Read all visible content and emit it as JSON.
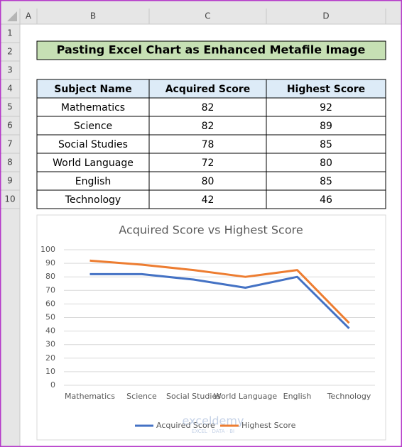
{
  "columns": [
    "A",
    "B",
    "C",
    "D"
  ],
  "rows": [
    1,
    2,
    3,
    4,
    5,
    6,
    7,
    8,
    9,
    10
  ],
  "title": "Pasting Excel Chart as Enhanced Metafile Image",
  "table": {
    "header": [
      "Subject Name",
      "Acquired Score",
      "Highest Score"
    ],
    "rows": [
      [
        "Mathematics",
        82,
        92
      ],
      [
        "Science",
        82,
        89
      ],
      [
        "Social Studies",
        78,
        85
      ],
      [
        "World Language",
        72,
        80
      ],
      [
        "English",
        80,
        85
      ],
      [
        "Technology",
        42,
        46
      ]
    ]
  },
  "chart_data": {
    "type": "line",
    "title": "Acquired Score vs Highest Score",
    "categories": [
      "Mathematics",
      "Science",
      "Social Studies",
      "World Language",
      "English",
      "Technology"
    ],
    "series": [
      {
        "name": "Acquired Score",
        "color": "#4472c4",
        "values": [
          82,
          82,
          78,
          72,
          80,
          42
        ]
      },
      {
        "name": "Highest Score",
        "color": "#ed7d31",
        "values": [
          92,
          89,
          85,
          80,
          85,
          46
        ]
      }
    ],
    "ylim": [
      0,
      100
    ],
    "yticks": [
      0,
      10,
      20,
      30,
      40,
      50,
      60,
      70,
      80,
      90,
      100
    ],
    "grid": true,
    "legend": "bottom"
  },
  "watermark": [
    "exceldemy",
    "EXCEL · DATA · BI"
  ]
}
